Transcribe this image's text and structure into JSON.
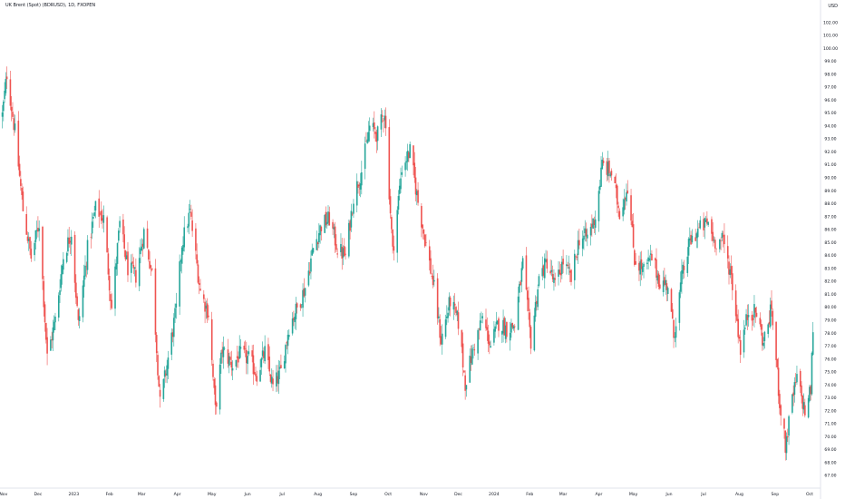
{
  "chart_data": {
    "type": "candlestick",
    "title": "UK Brent (Spot) (BDRUSD), 1D, FXOPEN",
    "currency": "USD",
    "colors": {
      "up": "#26a69a",
      "down": "#ef5350",
      "axis_text": "#131722",
      "background": "#ffffff"
    },
    "grid": false,
    "ylim": [
      66.0,
      103.0
    ],
    "y_ticks": [
      "67.00",
      "68.00",
      "69.00",
      "70.00",
      "71.00",
      "72.00",
      "73.00",
      "74.00",
      "75.00",
      "76.00",
      "77.00",
      "78.00",
      "79.00",
      "80.00",
      "81.00",
      "82.00",
      "83.00",
      "84.00",
      "85.00",
      "86.00",
      "87.00",
      "88.00",
      "89.00",
      "90.00",
      "91.00",
      "92.00",
      "93.00",
      "94.00",
      "95.00",
      "96.00",
      "97.00",
      "98.00",
      "99.00",
      "100.00",
      "101.00",
      "102.00"
    ],
    "x_labels": [
      "Nov",
      "Dec",
      "2023",
      "Feb",
      "Mar",
      "Apr",
      "May",
      "Jun",
      "Jul",
      "Aug",
      "Sep",
      "Oct",
      "Nov",
      "Dec",
      "2024",
      "Feb",
      "Mar",
      "Apr",
      "May",
      "Jun",
      "Jul",
      "Aug",
      "Sep",
      "Oct"
    ],
    "close_path": [
      [
        "2022-10-31",
        94.8
      ],
      [
        "2022-11-04",
        98.0
      ],
      [
        "2022-11-11",
        93.5
      ],
      [
        "2022-11-18",
        87.5
      ],
      [
        "2022-11-25",
        83.8
      ],
      [
        "2022-12-02",
        86.5
      ],
      [
        "2022-12-09",
        76.1
      ],
      [
        "2022-12-16",
        79.0
      ],
      [
        "2022-12-23",
        83.9
      ],
      [
        "2022-12-30",
        85.8
      ],
      [
        "2023-01-05",
        78.6
      ],
      [
        "2023-01-13",
        84.5
      ],
      [
        "2023-01-20",
        87.6
      ],
      [
        "2023-01-27",
        86.8
      ],
      [
        "2023-02-03",
        79.9
      ],
      [
        "2023-02-10",
        86.4
      ],
      [
        "2023-02-17",
        83.0
      ],
      [
        "2023-02-24",
        82.4
      ],
      [
        "2023-03-03",
        85.8
      ],
      [
        "2023-03-10",
        82.6
      ],
      [
        "2023-03-17",
        72.5
      ],
      [
        "2023-03-23",
        75.5
      ],
      [
        "2023-03-31",
        79.8
      ],
      [
        "2023-04-05",
        84.9
      ],
      [
        "2023-04-12",
        87.3
      ],
      [
        "2023-04-21",
        81.2
      ],
      [
        "2023-04-28",
        79.5
      ],
      [
        "2023-05-04",
        72.0
      ],
      [
        "2023-05-10",
        76.7
      ],
      [
        "2023-05-19",
        75.5
      ],
      [
        "2023-05-25",
        76.3
      ],
      [
        "2023-06-02",
        76.0
      ],
      [
        "2023-06-09",
        74.8
      ],
      [
        "2023-06-16",
        76.5
      ],
      [
        "2023-06-23",
        73.8
      ],
      [
        "2023-06-30",
        75.0
      ],
      [
        "2023-07-07",
        78.5
      ],
      [
        "2023-07-14",
        79.9
      ],
      [
        "2023-07-21",
        81.5
      ],
      [
        "2023-07-28",
        84.5
      ],
      [
        "2023-08-04",
        86.3
      ],
      [
        "2023-08-11",
        86.8
      ],
      [
        "2023-08-18",
        84.5
      ],
      [
        "2023-08-25",
        83.9
      ],
      [
        "2023-09-01",
        88.5
      ],
      [
        "2023-09-08",
        90.5
      ],
      [
        "2023-09-15",
        93.9
      ],
      [
        "2023-09-22",
        93.3
      ],
      [
        "2023-09-28",
        95.2
      ],
      [
        "2023-10-05",
        84.2
      ],
      [
        "2023-10-13",
        90.8
      ],
      [
        "2023-10-20",
        92.0
      ],
      [
        "2023-10-27",
        88.1
      ],
      [
        "2023-11-03",
        84.8
      ],
      [
        "2023-11-10",
        81.4
      ],
      [
        "2023-11-16",
        77.4
      ],
      [
        "2023-11-24",
        80.5
      ],
      [
        "2023-12-01",
        78.8
      ],
      [
        "2023-12-07",
        74.1
      ],
      [
        "2023-12-14",
        76.8
      ],
      [
        "2023-12-22",
        79.1
      ],
      [
        "2023-12-29",
        77.0
      ],
      [
        "2024-01-05",
        78.8
      ],
      [
        "2024-01-12",
        78.3
      ],
      [
        "2024-01-19",
        78.6
      ],
      [
        "2024-01-26",
        83.3
      ],
      [
        "2024-02-02",
        77.3
      ],
      [
        "2024-02-09",
        82.2
      ],
      [
        "2024-02-16",
        83.5
      ],
      [
        "2024-02-23",
        81.6
      ],
      [
        "2024-03-01",
        83.5
      ],
      [
        "2024-03-08",
        82.1
      ],
      [
        "2024-03-15",
        85.3
      ],
      [
        "2024-03-22",
        85.4
      ],
      [
        "2024-03-29",
        87.0
      ],
      [
        "2024-04-04",
        91.0
      ],
      [
        "2024-04-12",
        90.3
      ],
      [
        "2024-04-19",
        87.3
      ],
      [
        "2024-04-26",
        89.4
      ],
      [
        "2024-05-02",
        83.7
      ],
      [
        "2024-05-10",
        82.8
      ],
      [
        "2024-05-17",
        83.8
      ],
      [
        "2024-05-24",
        81.9
      ],
      [
        "2024-05-31",
        81.7
      ],
      [
        "2024-06-05",
        77.7
      ],
      [
        "2024-06-12",
        82.2
      ],
      [
        "2024-06-19",
        85.0
      ],
      [
        "2024-06-27",
        86.0
      ],
      [
        "2024-07-05",
        86.5
      ],
      [
        "2024-07-10",
        85.1
      ],
      [
        "2024-07-18",
        85.1
      ],
      [
        "2024-07-25",
        82.4
      ],
      [
        "2024-08-02",
        76.8
      ],
      [
        "2024-08-09",
        79.7
      ],
      [
        "2024-08-16",
        79.5
      ],
      [
        "2024-08-22",
        77.2
      ],
      [
        "2024-08-29",
        79.9
      ],
      [
        "2024-09-05",
        72.7
      ],
      [
        "2024-09-10",
        69.2
      ],
      [
        "2024-09-16",
        72.8
      ],
      [
        "2024-09-20",
        74.5
      ],
      [
        "2024-09-27",
        71.9
      ],
      [
        "2024-10-02",
        73.6
      ],
      [
        "2024-10-04",
        78.4
      ]
    ]
  }
}
